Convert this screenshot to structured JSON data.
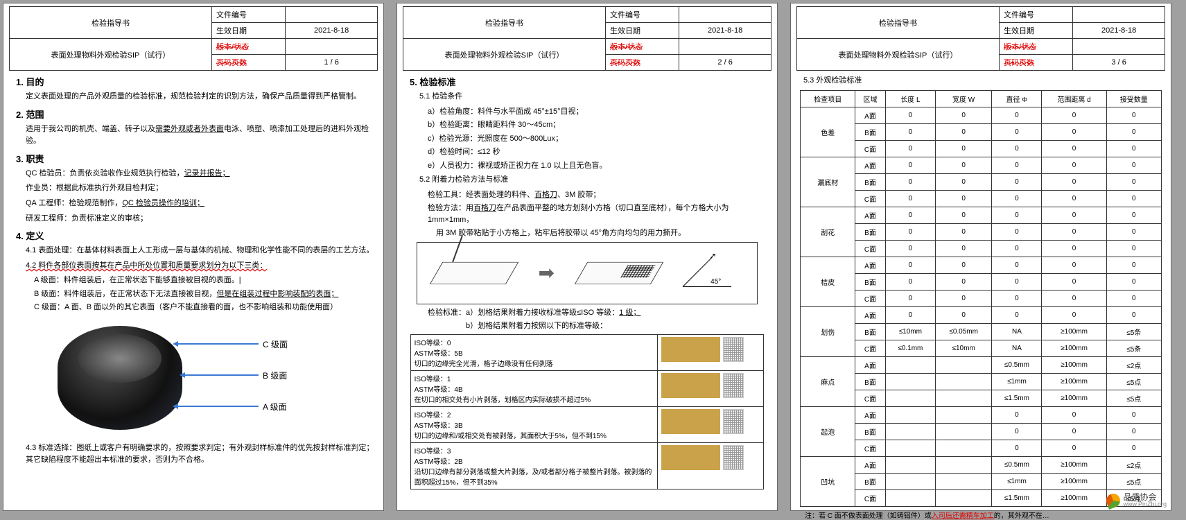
{
  "header": {
    "title": "检验指导书",
    "lbl_docno": "文件编号",
    "lbl_effdate": "生效日期",
    "effdate": "2021-8-18",
    "subtitle": "表面处理物料外观检验SIP（试行）",
    "lbl_ver": "版本/状态",
    "lbl_page": "页码页数",
    "page1": "1 / 6",
    "page2": "2 / 6",
    "page3": "3 / 6"
  },
  "p1": {
    "h1": "1. 目的",
    "t1": "定义表面处理的产品外观质量的检验标准，规范检验判定的识别方法，确保产品质量得到严格管制。",
    "h2": "2. 范围",
    "t2a": "适用于我公司的机壳、端盖、转子以及",
    "t2b": "需要外观或者外表面",
    "t2c": "电泳、喷塑、喷漆加工处理后的进料外观检验。",
    "h3": "3. 职责",
    "t3a": "QC 检验员：负责依炎验收作业规范执行检验，",
    "t3a2": "记录并报告；",
    "t3b": "作业员：根据此标准执行外观目检判定；",
    "t3c": "QA 工程师：检验规范制作，",
    "t3c2": "QC 检验员操作的培训；",
    "t3d": "研发工程师：负责标准定义的审核；",
    "h4": "4. 定义",
    "t41": "4.1 表面处理：在基体材料表面上人工形成一层与基体的机械、物理和化学性能不同的表层的工艺方法。",
    "t42": "4.2 料件各部位表面按其在产品中所处位置和质量要求划分为以下三类：",
    "t42a": "A 级面：料件组装后，在正常状态下能够直接被目视的表面。",
    "t42b1": "B 级面：料件组装后，在正常状态下无法直接被目视，",
    "t42b2": "但是在组装过程中影响装配的表面；",
    "t42c": "C 级面：A 面、B 面以外的其它表面（客户不能直接看的面，也不影响组装和功能使用面）",
    "lblC": "C 级面",
    "lblB": "B 级面",
    "lblA": "A 级面",
    "t43": "4.3 标准选择：图纸上或客户有明确要求的，按照要求判定；有外观封样标准件的优先按封样标准判定；其它缺陷程度不能超出本标准的要求，否则为不合格。"
  },
  "p2": {
    "h5": "5. 检验标准",
    "h51": "5.1 检验条件",
    "a": "a）检验角度：料件与水平面成 45°±15°目视；",
    "b": "b）检验距离：眼睛距料件 30～45cm；",
    "c": "c）检验光源：光照度在 500～800Lux；",
    "d": "d）检验时间：≤12 秒",
    "e": "e）人员视力：裸视或矫正视力在 1.0 以上且无色盲。",
    "h52": "5.2 附着力检验方法与标准",
    "tool": "检验工具：经表面处理的料件、",
    "tool_u": "百格刀",
    "tool2": "、3M 胶带；",
    "method": "检验方法：用",
    "method_u": "百格刀",
    "method2": "在产品表面平整的地方划刻小方格（切口直至底材），每个方格大小为 1mm×1mm，",
    "method3": "用 3M 胶带粘贴于小方格上，粘牢后将胶带以 45°角方向均匀的用力撕开。",
    "stda": "检验标准：a）划格结果附着力接收标准等级≤ISO 等级：",
    "stda_u": "1 级；",
    "stdb": "　　　　　b）划格结果附着力按照以下的标准等级：",
    "iso0a": "ISO等级：0",
    "iso0b": "ASTM等级：5B",
    "iso0c": "切口的边缘完全光滑，格子边缘没有任何剥落",
    "iso1a": "ISO等级：1",
    "iso1b": "ASTM等级：4B",
    "iso1c": "在切口的相交处有小片剥落，划格区内实际破损不超过5%",
    "iso2a": "ISO等级：2",
    "iso2b": "ASTM等级：3B",
    "iso2c": "切口的边缘和/或相交处有被剥落，其面积大于5%，但不到15%",
    "iso3a": "ISO等级：3",
    "iso3b": "ASTM等级：2B",
    "iso3c": "沿切口边缘有部分剥落或整大片剥落，及/或者部分格子被整片剥落。被剥落的面积超过15%，但不到35%"
  },
  "p3": {
    "h53": "5.3 外观检验标准",
    "cols": [
      "检查项目",
      "区域",
      "长度 L",
      "宽度 W",
      "直径 Φ",
      "范围距离 d",
      "接受数量"
    ],
    "groups": [
      {
        "name": "色差",
        "rows": [
          [
            "A面",
            "0",
            "0",
            "0",
            "0",
            "0"
          ],
          [
            "B面",
            "0",
            "0",
            "0",
            "0",
            "0"
          ],
          [
            "C面",
            "0",
            "0",
            "0",
            "0",
            "0"
          ]
        ]
      },
      {
        "name": "漏底材",
        "rows": [
          [
            "A面",
            "0",
            "0",
            "0",
            "0",
            "0"
          ],
          [
            "B面",
            "0",
            "0",
            "0",
            "0",
            "0"
          ],
          [
            "C面",
            "0",
            "0",
            "0",
            "0",
            "0"
          ]
        ]
      },
      {
        "name": "刮花",
        "rows": [
          [
            "A面",
            "0",
            "0",
            "0",
            "0",
            "0"
          ],
          [
            "B面",
            "0",
            "0",
            "0",
            "0",
            "0"
          ],
          [
            "C面",
            "0",
            "0",
            "0",
            "0",
            "0"
          ]
        ]
      },
      {
        "name": "桔皮",
        "rows": [
          [
            "A面",
            "0",
            "0",
            "0",
            "0",
            "0"
          ],
          [
            "B面",
            "0",
            "0",
            "0",
            "0",
            "0"
          ],
          [
            "C面",
            "0",
            "0",
            "0",
            "0",
            "0"
          ]
        ]
      },
      {
        "name": "划伤",
        "rows": [
          [
            "A面",
            "0",
            "0",
            "0",
            "0",
            "0"
          ],
          [
            "B面",
            "≤10mm",
            "≤0.05mm",
            "NA",
            "≥100mm",
            "≤5条"
          ],
          [
            "C面",
            "≤0.1mm",
            "≤10mm",
            "NA",
            "≥100mm",
            "≤5条"
          ]
        ]
      },
      {
        "name": "麻点",
        "rows": [
          [
            "A面",
            "",
            "",
            "≤0.5mm",
            "≥100mm",
            "≤2点"
          ],
          [
            "B面",
            "",
            "",
            "≤1mm",
            "≥100mm",
            "≤5点"
          ],
          [
            "C面",
            "",
            "",
            "≤1.5mm",
            "≥100mm",
            "≤5点"
          ]
        ]
      },
      {
        "name": "起泡",
        "rows": [
          [
            "A面",
            "",
            "",
            "0",
            "0",
            "0"
          ],
          [
            "B面",
            "",
            "",
            "0",
            "0",
            "0"
          ],
          [
            "C面",
            "",
            "",
            "0",
            "0",
            "0"
          ]
        ]
      },
      {
        "name": "凹坑",
        "rows": [
          [
            "A面",
            "",
            "",
            "≤0.5mm",
            "≥100mm",
            "≤2点"
          ],
          [
            "B面",
            "",
            "",
            "≤1mm",
            "≥100mm",
            "≤5点"
          ],
          [
            "C面",
            "",
            "",
            "≤1.5mm",
            "≥100mm",
            "≤5点"
          ]
        ]
      }
    ],
    "note_a": "注：若 C 面不做表面处理（如铸铝件）或",
    "note_b": "入司后还需精车加工",
    "note_c": "的，其外观不在…"
  },
  "watermark": {
    "cn": "品质协会",
    "url": "www.PinZhi.org"
  }
}
